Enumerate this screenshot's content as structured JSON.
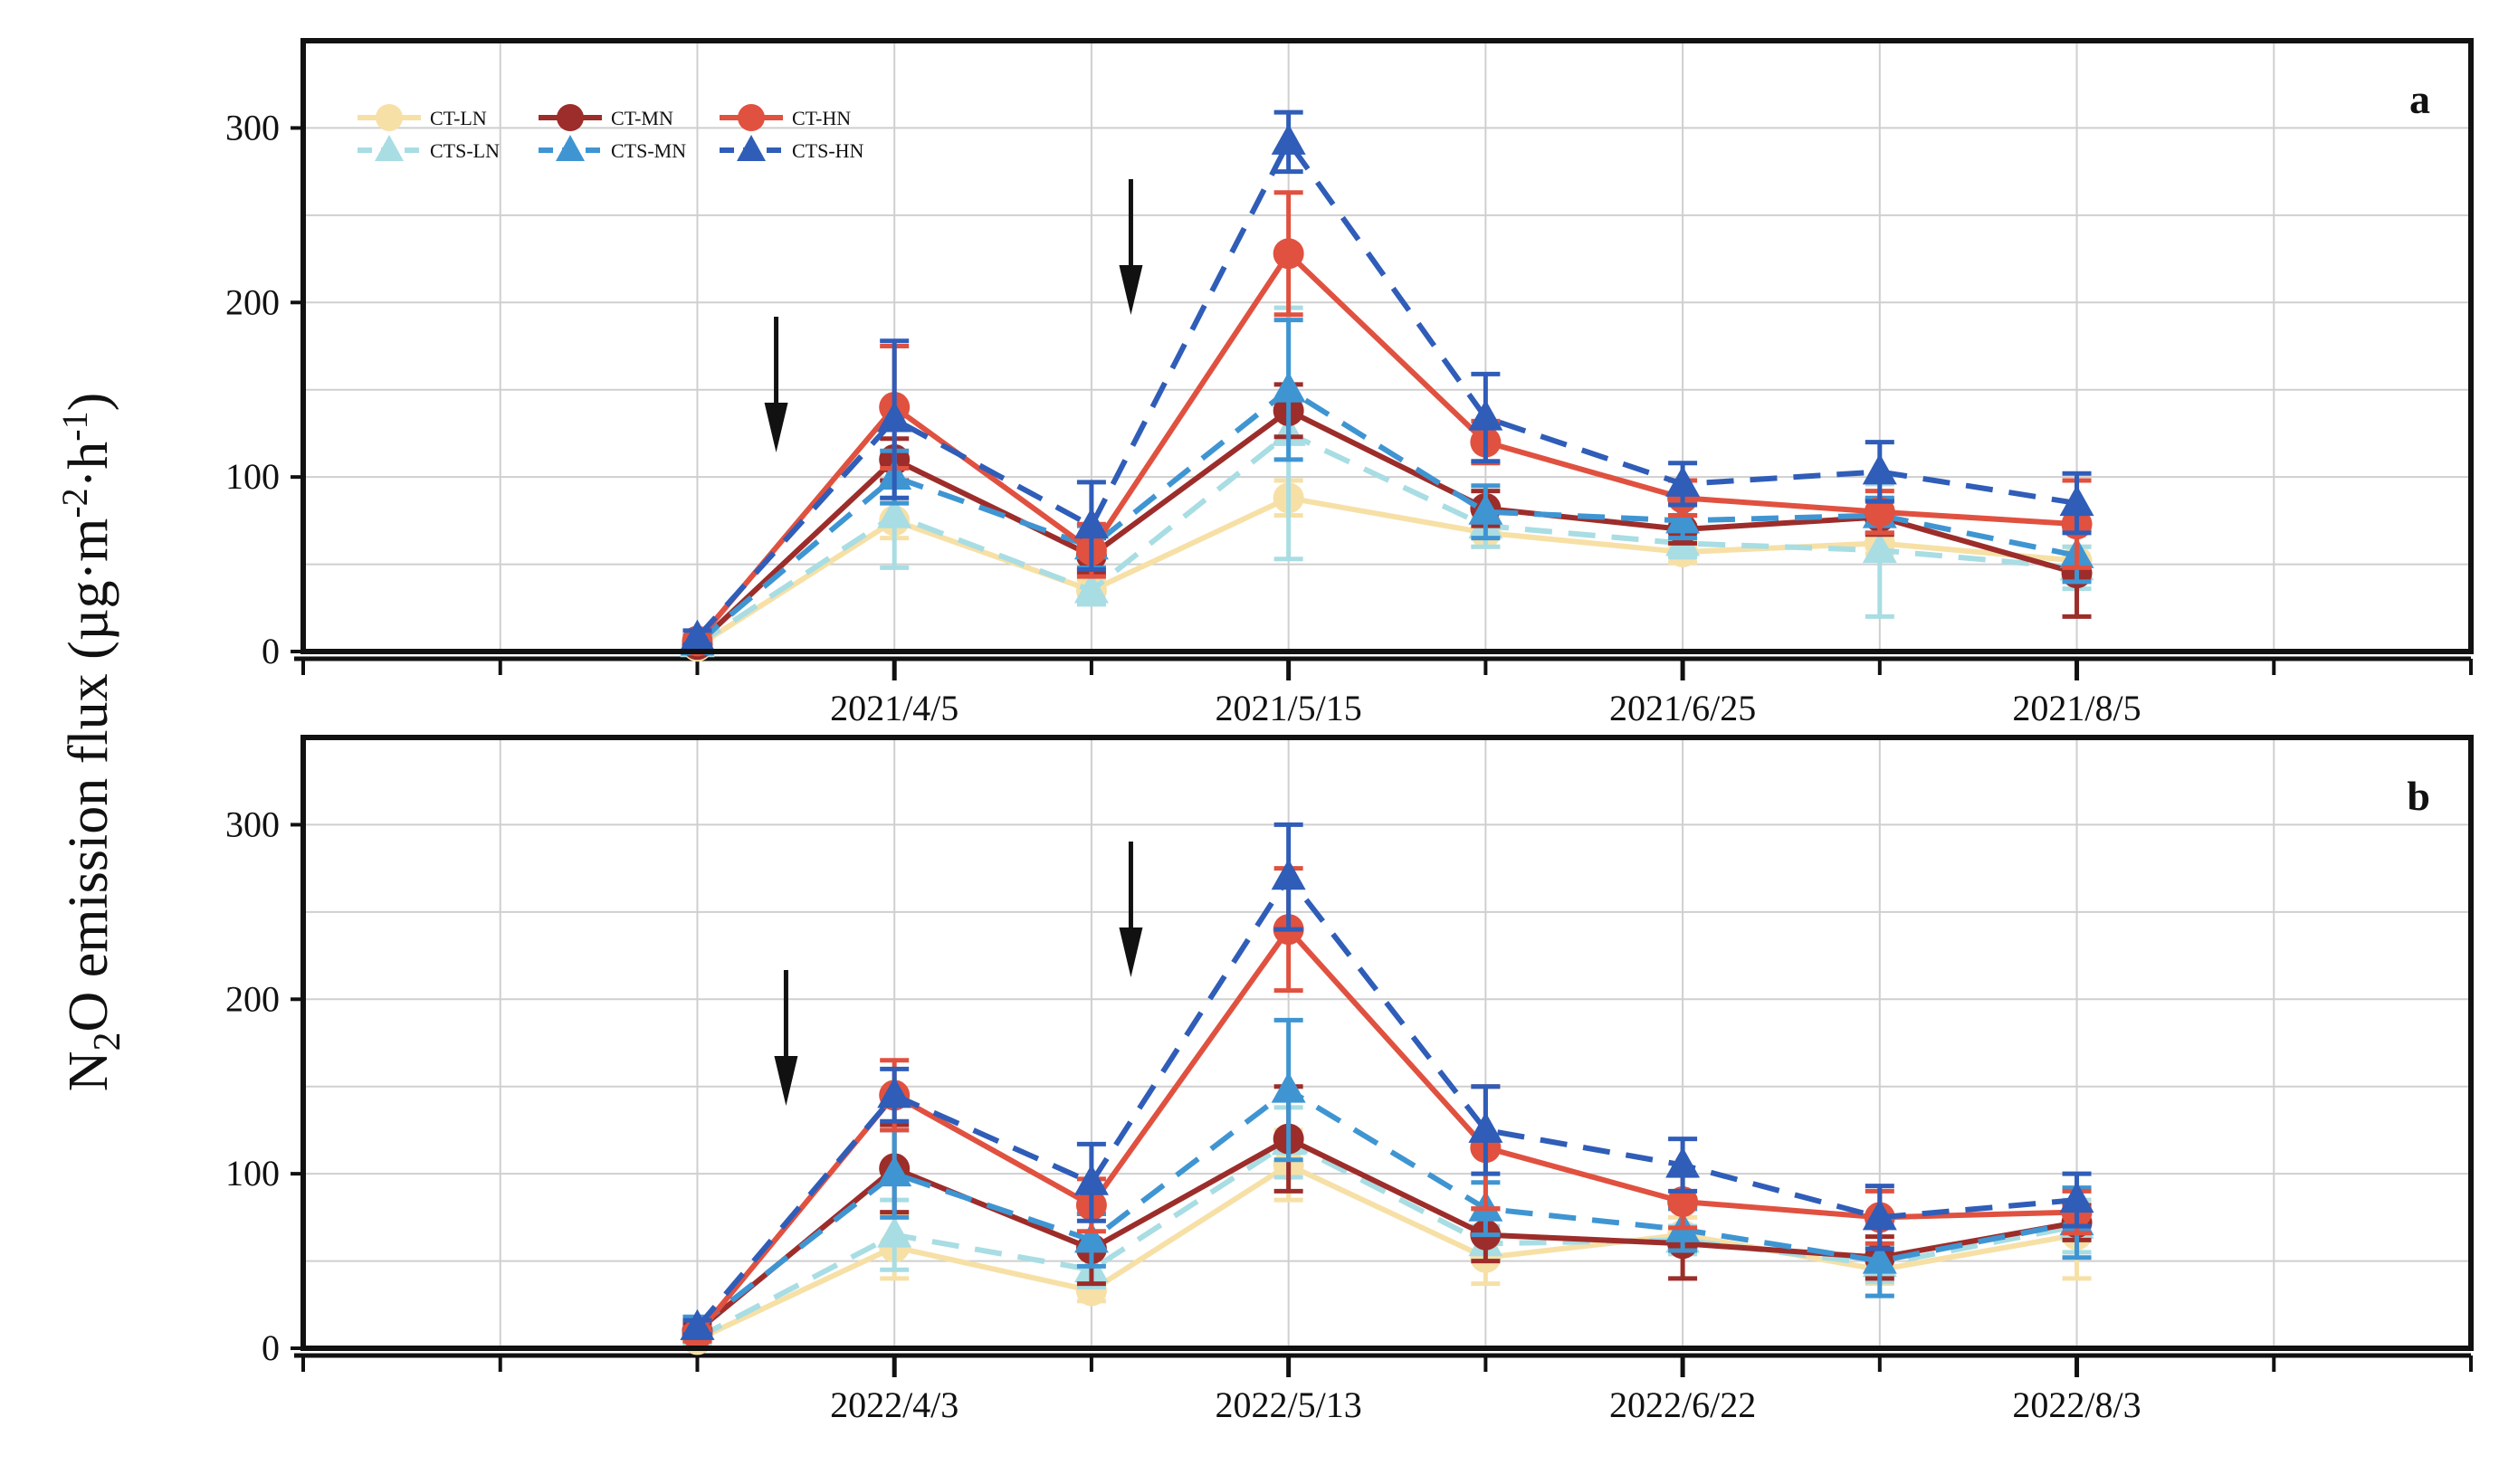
{
  "figure": {
    "ylabel_main": "N",
    "ylabel_sub2": "2",
    "ylabel_mid": "O emission flux (µg·m",
    "ylabel_sup1": "-2",
    "ylabel_dot": "·h",
    "ylabel_sup2": "-1",
    "ylabel_end": ")"
  },
  "legend": {
    "items": [
      {
        "key": "CT-LN",
        "label": "CT-LN",
        "color": "#f7e0a6",
        "marker": "circle",
        "dash": false
      },
      {
        "key": "CTS-LN",
        "label": "CTS-LN",
        "color": "#a8dde3",
        "marker": "triangle",
        "dash": true
      },
      {
        "key": "CT-MN",
        "label": "CT-MN",
        "color": "#9c2d2a",
        "marker": "circle",
        "dash": false
      },
      {
        "key": "CTS-MN",
        "label": "CTS-MN",
        "color": "#3f95d2",
        "marker": "triangle",
        "dash": true
      },
      {
        "key": "CT-HN",
        "label": "CT-HN",
        "color": "#e05140",
        "marker": "circle",
        "dash": false
      },
      {
        "key": "CTS-HN",
        "label": "CTS-HN",
        "color": "#2f5db8",
        "marker": "triangle",
        "dash": true
      }
    ]
  },
  "chart_data": [
    {
      "type": "line",
      "panel_label": "a",
      "ylim": [
        0,
        350
      ],
      "yticks": [
        0,
        100,
        200,
        300
      ],
      "xlim": [
        -1.0,
        10.0
      ],
      "xticks": [
        {
          "x": 2,
          "label": "2021/4/5"
        },
        {
          "x": 4,
          "label": "2021/5/15"
        },
        {
          "x": 6,
          "label": "2021/6/25"
        },
        {
          "x": 8,
          "label": "2021/8/5"
        }
      ],
      "x": [
        1,
        2,
        3,
        4,
        5,
        6,
        7,
        8
      ],
      "arrows": [
        1.4,
        3.2
      ],
      "series": [
        {
          "name": "CT-LN",
          "values": [
            3,
            75,
            35,
            88,
            68,
            57,
            62,
            52
          ],
          "errors": [
            2,
            10,
            6,
            10,
            8,
            6,
            6,
            8
          ]
        },
        {
          "name": "CTS-LN",
          "values": [
            4,
            78,
            35,
            125,
            72,
            62,
            58,
            48
          ],
          "errors": [
            3,
            30,
            8,
            72,
            12,
            8,
            38,
            12
          ]
        },
        {
          "name": "CT-MN",
          "values": [
            4,
            110,
            55,
            138,
            82,
            70,
            77,
            45
          ],
          "errors": [
            2,
            12,
            10,
            15,
            10,
            8,
            10,
            25
          ]
        },
        {
          "name": "CTS-MN",
          "values": [
            5,
            100,
            60,
            150,
            80,
            75,
            78,
            55
          ],
          "errors": [
            3,
            15,
            12,
            40,
            15,
            10,
            10,
            15
          ]
        },
        {
          "name": "CT-HN",
          "values": [
            6,
            140,
            58,
            228,
            120,
            88,
            80,
            73
          ],
          "errors": [
            3,
            35,
            15,
            35,
            12,
            10,
            12,
            25
          ]
        },
        {
          "name": "CTS-HN",
          "values": [
            8,
            133,
            72,
            292,
            134,
            96,
            103,
            85
          ],
          "errors": [
            4,
            45,
            25,
            17,
            25,
            12,
            17,
            17
          ]
        }
      ]
    },
    {
      "type": "line",
      "panel_label": "b",
      "ylim": [
        0,
        350
      ],
      "yticks": [
        0,
        100,
        200,
        300
      ],
      "xlim": [
        -1.0,
        10.0
      ],
      "xticks": [
        {
          "x": 2,
          "label": "2022/4/3"
        },
        {
          "x": 4,
          "label": "2022/5/13"
        },
        {
          "x": 6,
          "label": "2022/6/22"
        },
        {
          "x": 8,
          "label": "2022/8/3"
        }
      ],
      "x": [
        1,
        2,
        3,
        4,
        5,
        6,
        7,
        8
      ],
      "arrows": [
        1.45,
        3.2
      ],
      "series": [
        {
          "name": "CT-LN",
          "values": [
            5,
            58,
            33,
            105,
            52,
            65,
            45,
            65
          ],
          "errors": [
            3,
            18,
            6,
            20,
            15,
            10,
            8,
            25
          ]
        },
        {
          "name": "CTS-LN",
          "values": [
            6,
            65,
            45,
            118,
            60,
            62,
            48,
            70
          ],
          "errors": [
            4,
            20,
            10,
            20,
            10,
            8,
            10,
            15
          ]
        },
        {
          "name": "CT-MN",
          "values": [
            10,
            103,
            57,
            120,
            65,
            60,
            52,
            72
          ],
          "errors": [
            4,
            25,
            20,
            30,
            15,
            20,
            12,
            10
          ]
        },
        {
          "name": "CTS-MN",
          "values": [
            12,
            100,
            62,
            148,
            80,
            68,
            50,
            72
          ],
          "errors": [
            6,
            25,
            15,
            40,
            15,
            12,
            20,
            20
          ]
        },
        {
          "name": "CT-HN",
          "values": [
            8,
            145,
            82,
            240,
            115,
            84,
            75,
            78
          ],
          "errors": [
            4,
            20,
            15,
            35,
            35,
            15,
            15,
            12
          ]
        },
        {
          "name": "CTS-HN",
          "values": [
            12,
            145,
            95,
            270,
            125,
            105,
            75,
            85
          ],
          "errors": [
            4,
            15,
            22,
            30,
            25,
            15,
            18,
            15
          ]
        }
      ]
    }
  ]
}
